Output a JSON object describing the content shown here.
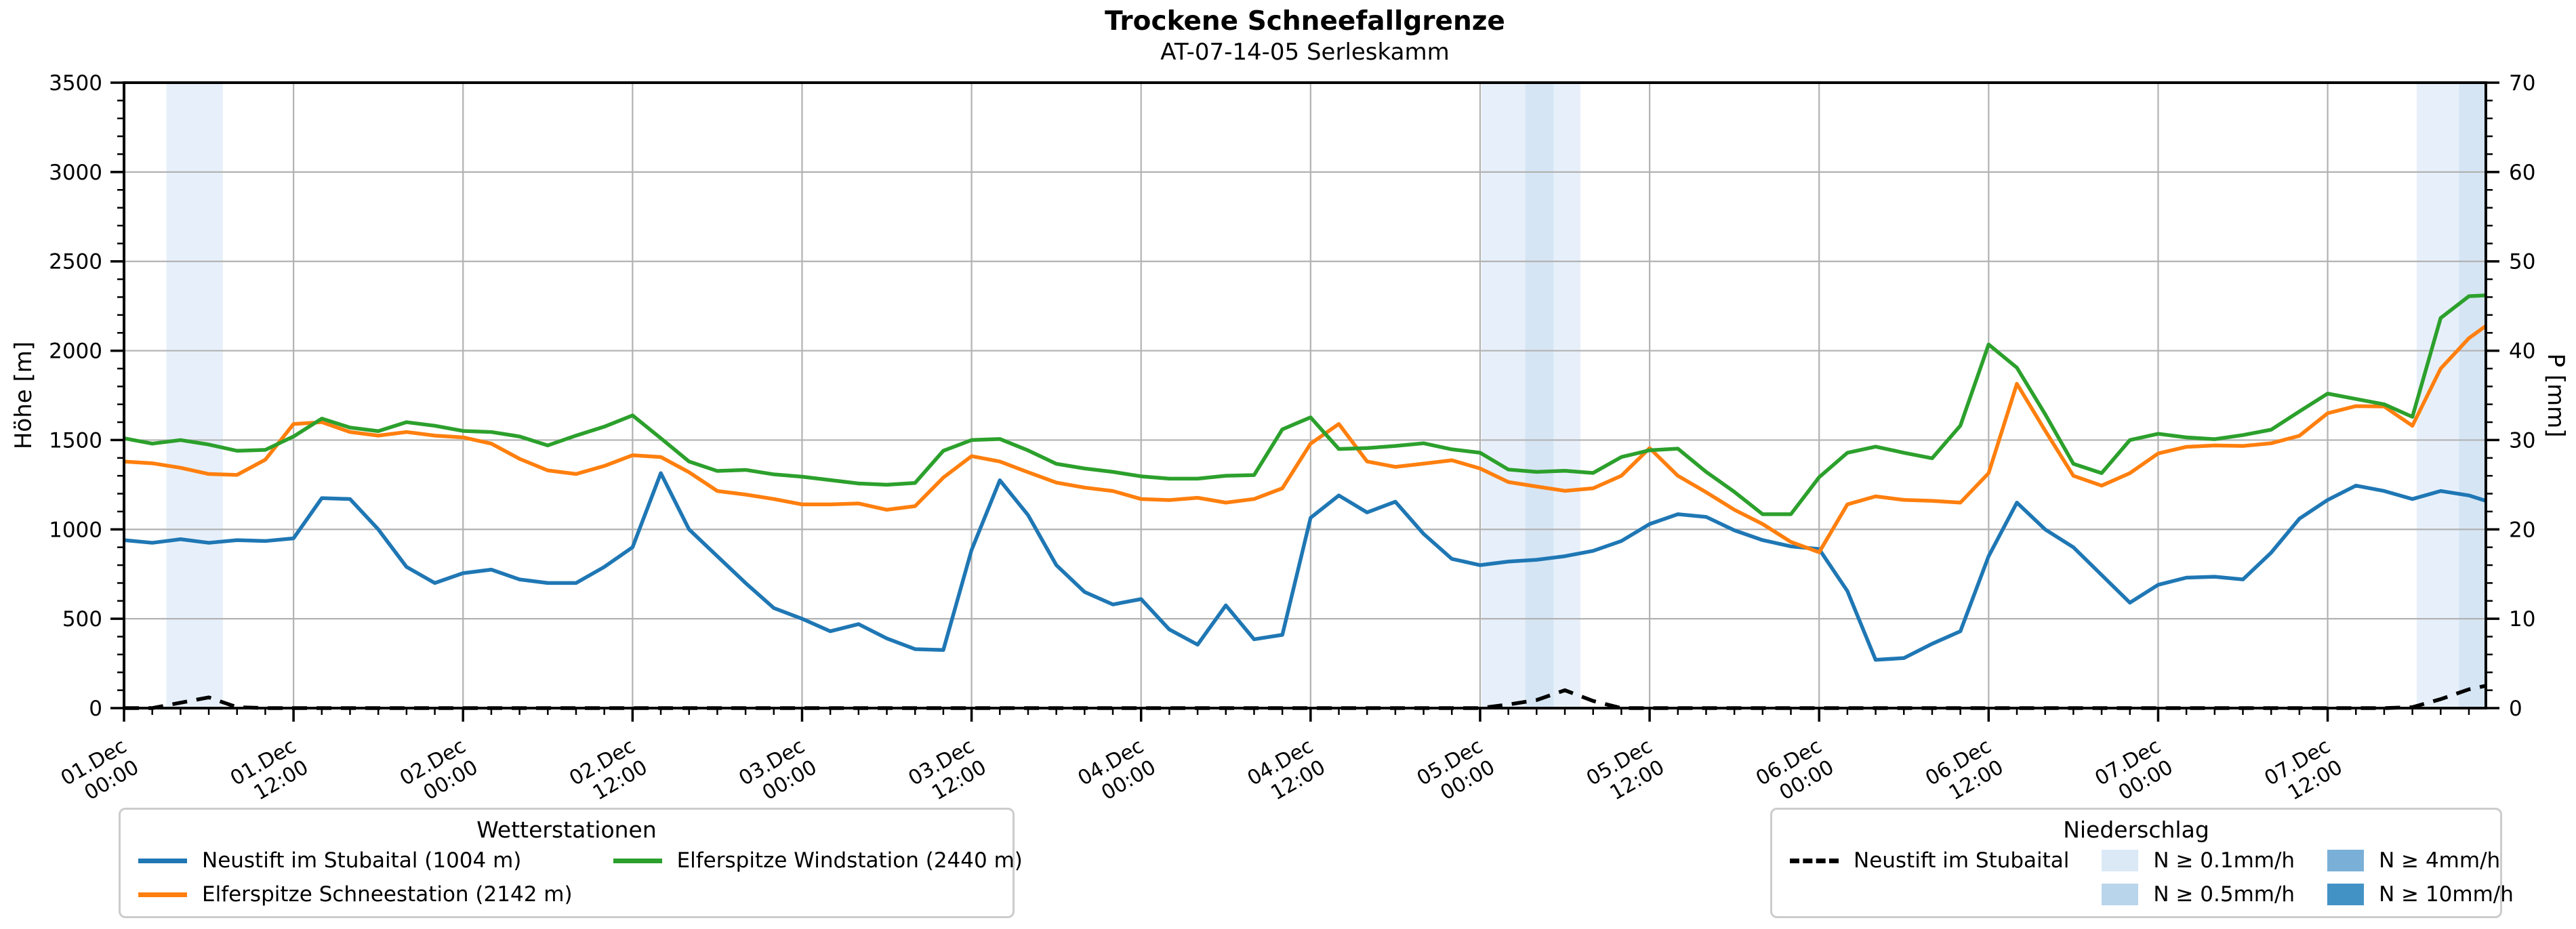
{
  "title": "Trockene Schneefallgrenze",
  "subtitle": "AT-07-14-05 Serleskamm",
  "axes": {
    "y_left_label": "Höhe [m]",
    "y_right_label": "P [mm]",
    "y_ticks": [
      0,
      500,
      1000,
      1500,
      2000,
      2500,
      3000,
      3500
    ],
    "y2_ticks": [
      0,
      10,
      20,
      30,
      40,
      50,
      60,
      70
    ]
  },
  "legend_stations": {
    "title": "Wetterstationen",
    "items": [
      {
        "label": "Neustift im Stubaital (1004 m)",
        "color": "#1f77b4"
      },
      {
        "label": "Elferspitze Windstation (2440 m)",
        "color": "#2ca02c"
      },
      {
        "label": "Elferspitze Schneestation (2142 m)",
        "color": "#ff7f0e"
      }
    ]
  },
  "legend_precip": {
    "title": "Niederschlag",
    "line_item": {
      "label": "Neustift im Stubaital",
      "color": "#000000"
    },
    "patches": [
      {
        "label": "N ≥ 0.1mm/h",
        "color": "#dbe9f6"
      },
      {
        "label": "N ≥ 0.5mm/h",
        "color": "#b9d5ec"
      },
      {
        "label": "N ≥ 4mm/h",
        "color": "#7ab0d8"
      },
      {
        "label": "N ≥ 10mm/h",
        "color": "#4392c6"
      }
    ]
  },
  "chart_data": {
    "type": "line",
    "title": "Trockene Schneefallgrenze",
    "subtitle": "AT-07-14-05 Serleskamm",
    "xlabel": "",
    "ylabel": "Höhe [m]",
    "y2label": "P [mm]",
    "ylim": [
      0,
      3500
    ],
    "y2lim": [
      0,
      70
    ],
    "grid": true,
    "x_unit": "hours since 01.Dec 00:00",
    "x_start": 0,
    "x_step": 2,
    "x_total_hours": 167.2,
    "x_major_tick_hours": 12,
    "x_minor_tick_hours": 2,
    "x_tick_labels": [
      {
        "date": "01.Dec",
        "time": "00:00"
      },
      {
        "date": "01.Dec",
        "time": "12:00"
      },
      {
        "date": "02.Dec",
        "time": "00:00"
      },
      {
        "date": "02.Dec",
        "time": "12:00"
      },
      {
        "date": "03.Dec",
        "time": "00:00"
      },
      {
        "date": "03.Dec",
        "time": "12:00"
      },
      {
        "date": "04.Dec",
        "time": "00:00"
      },
      {
        "date": "04.Dec",
        "time": "12:00"
      },
      {
        "date": "05.Dec",
        "time": "00:00"
      },
      {
        "date": "05.Dec",
        "time": "12:00"
      },
      {
        "date": "06.Dec",
        "time": "00:00"
      },
      {
        "date": "06.Dec",
        "time": "12:00"
      },
      {
        "date": "07.Dec",
        "time": "00:00"
      },
      {
        "date": "07.Dec",
        "time": "12:00"
      }
    ],
    "series": [
      {
        "name": "Neustift im Stubaital (1004 m)",
        "color": "#1f77b4",
        "end": 1160,
        "values": [
          940,
          925,
          945,
          925,
          940,
          935,
          950,
          1175,
          1170,
          1000,
          790,
          700,
          755,
          775,
          720,
          700,
          700,
          790,
          900,
          1315,
          1000,
          850,
          700,
          560,
          500,
          430,
          470,
          390,
          330,
          325,
          885,
          1275,
          1080,
          800,
          650,
          580,
          610,
          440,
          355,
          575,
          385,
          410,
          1065,
          1190,
          1095,
          1155,
          975,
          835,
          800,
          820,
          830,
          850,
          880,
          935,
          1030,
          1085,
          1070,
          995,
          940,
          905,
          890,
          655,
          270,
          280,
          360,
          430,
          850,
          1150,
          1000,
          900,
          745,
          590,
          690,
          730,
          735,
          720,
          870,
          1060,
          1165,
          1245,
          1215,
          1170,
          1215,
          1190
        ]
      },
      {
        "name": "Elferspitze Schneestation (2142 m)",
        "color": "#ff7f0e",
        "end": 2139,
        "values": [
          1380,
          1370,
          1345,
          1310,
          1305,
          1390,
          1590,
          1600,
          1545,
          1525,
          1545,
          1525,
          1515,
          1480,
          1395,
          1330,
          1310,
          1355,
          1415,
          1405,
          1320,
          1215,
          1195,
          1170,
          1140,
          1140,
          1145,
          1110,
          1130,
          1290,
          1410,
          1380,
          1320,
          1262,
          1234,
          1215,
          1170,
          1164,
          1177,
          1150,
          1170,
          1230,
          1480,
          1590,
          1380,
          1350,
          1368,
          1387,
          1341,
          1265,
          1240,
          1216,
          1230,
          1300,
          1455,
          1300,
          1208,
          1110,
          1030,
          930,
          872,
          1140,
          1185,
          1165,
          1160,
          1150,
          1315,
          1815,
          1553,
          1300,
          1245,
          1315,
          1425,
          1462,
          1470,
          1467,
          1482,
          1524,
          1650,
          1690,
          1688,
          1580,
          1900,
          2070
        ]
      },
      {
        "name": "Elferspitze Windstation (2440 m)",
        "color": "#2ca02c",
        "end": 2310,
        "values": [
          1510,
          1480,
          1500,
          1475,
          1440,
          1445,
          1520,
          1620,
          1570,
          1550,
          1600,
          1580,
          1551,
          1545,
          1520,
          1470,
          1525,
          1575,
          1638,
          1510,
          1380,
          1327,
          1333,
          1308,
          1295,
          1276,
          1257,
          1250,
          1260,
          1440,
          1500,
          1506,
          1442,
          1367,
          1341,
          1322,
          1297,
          1284,
          1284,
          1300,
          1304,
          1560,
          1627,
          1450,
          1455,
          1467,
          1482,
          1448,
          1429,
          1335,
          1322,
          1328,
          1316,
          1405,
          1443,
          1452,
          1322,
          1210,
          1085,
          1085,
          1292,
          1429,
          1463,
          1429,
          1398,
          1581,
          2035,
          1905,
          1645,
          1367,
          1315,
          1500,
          1535,
          1515,
          1505,
          1528,
          1558,
          1660,
          1760,
          1730,
          1700,
          1630,
          2183,
          2305
        ]
      }
    ],
    "precip_series": {
      "name": "Neustift im Stubaital",
      "color": "#000000",
      "style": "dashed",
      "axis": "right",
      "end": 2.5,
      "values": [
        0,
        0,
        0.6,
        1.2,
        0.1,
        0,
        0,
        0,
        0,
        0,
        0,
        0,
        0,
        0,
        0,
        0,
        0,
        0,
        0,
        0,
        0,
        0,
        0,
        0,
        0,
        0,
        0,
        0,
        0,
        0,
        0,
        0,
        0,
        0,
        0,
        0,
        0,
        0,
        0,
        0,
        0,
        0,
        0,
        0,
        0,
        0,
        0,
        0,
        0,
        0.4,
        0.9,
        2.0,
        0.8,
        0,
        0,
        0,
        0,
        0,
        0,
        0,
        0,
        0,
        0,
        0,
        0,
        0,
        0,
        0,
        0,
        0,
        0,
        0,
        0,
        0,
        0,
        0,
        0,
        0,
        0,
        0,
        0,
        0.1,
        1.0,
        2.1
      ]
    },
    "precip_bands": [
      {
        "start": 3.0,
        "end": 7.0,
        "level": "0.1"
      },
      {
        "start": 96.1,
        "end": 103.1,
        "level": "0.1"
      },
      {
        "start": 99.2,
        "end": 101.2,
        "level": "0.5"
      },
      {
        "start": 162.3,
        "end": 167.2,
        "level": "0.1"
      },
      {
        "start": 165.3,
        "end": 167.2,
        "level": "0.5"
      }
    ],
    "band_colors": {
      "0.1": "#e7f0fa",
      "0.5": "#d5e5f4"
    },
    "legend_position": "below",
    "colors": {
      "grid": "#b2b2b2",
      "spine": "#000000"
    }
  }
}
